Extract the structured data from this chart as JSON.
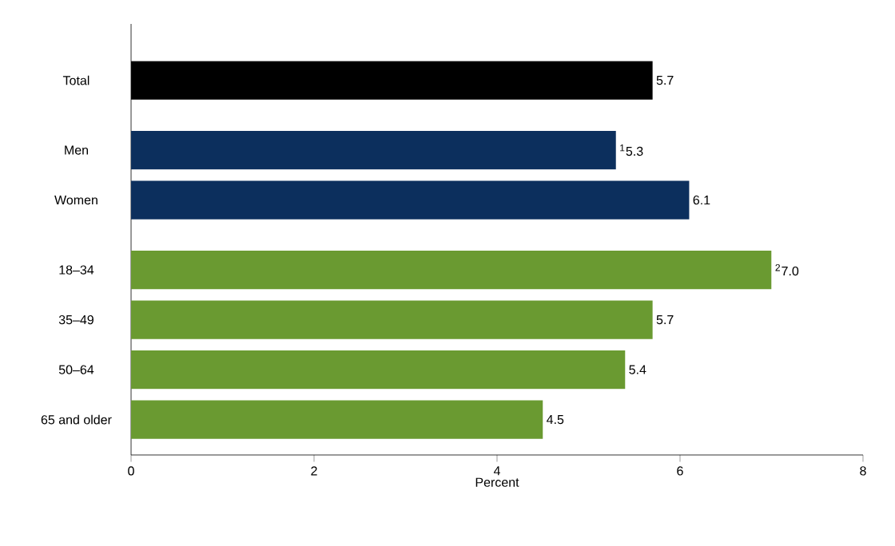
{
  "chart_data": {
    "type": "bar",
    "orientation": "horizontal",
    "xlabel": "Percent",
    "categories": [
      "Total",
      "Men",
      "Women",
      "18–34",
      "35–49",
      "50–64",
      "65 and older"
    ],
    "values": [
      5.7,
      5.3,
      6.1,
      7.0,
      5.7,
      5.4,
      4.5
    ],
    "value_labels": [
      "5.7",
      "$^{1}$5.3",
      "6.1",
      "$^{2}$7.0",
      "5.7",
      "5.4",
      "4.5"
    ],
    "colors": [
      "#000000",
      "#0c2f5d",
      "#0c2f5d",
      "#6a9a31",
      "#6a9a31",
      "#6a9a31",
      "#6a9a31"
    ],
    "xlim": [
      0,
      8
    ],
    "xticks": [
      0,
      2,
      4,
      6,
      8
    ],
    "grid": false
  }
}
